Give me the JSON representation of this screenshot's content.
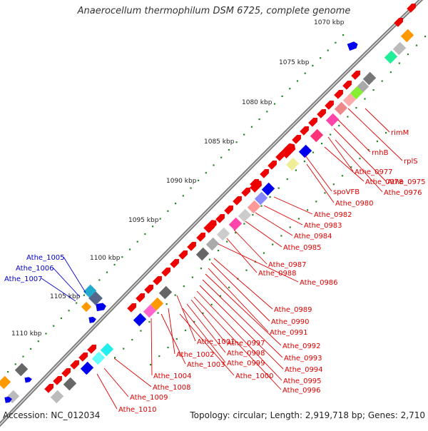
{
  "title": "Anaerocellum thermophilum DSM 6725, complete genome",
  "footer": {
    "accession": "Accession: NC_012034",
    "summary": "Topology: circular; Length: 2,919,718 bp; Genes: 2,710"
  },
  "scale_labels": [
    "1070 kbp",
    "1075 kbp",
    "1080 kbp",
    "1085 kbp",
    "1090 kbp",
    "1095 kbp",
    "1100 kbp",
    "1105 kbp",
    "1110 kbp"
  ],
  "labels_right": [
    "rimM",
    "rplS",
    "rnhB",
    "Athe_0975",
    "Athe_0976",
    "Athe_0977",
    "Athe_0978",
    "spoVFB",
    "Athe_0980",
    "Athe_0982",
    "Athe_0983",
    "Athe_0984",
    "Athe_0985",
    "Athe_0987",
    "Athe_0988",
    "Athe_0986",
    "Athe_0989",
    "Athe_0990",
    "Athe_0991",
    "Athe_0992",
    "Athe_0993",
    "Athe_0994",
    "Athe_0995",
    "Athe_0996",
    "Athe_1001",
    "Athe_0997",
    "Athe_0998",
    "Athe_0999",
    "Athe_1000",
    "Athe_1002",
    "Athe_1003",
    "Athe_1004",
    "Athe_1008",
    "Athe_1009",
    "Athe_1010"
  ],
  "labels_left": [
    "Athe_1005",
    "Athe_1006",
    "Athe_1007"
  ],
  "colors": {
    "label_red": "#dd0000",
    "label_blue": "#0000cc",
    "backbone": "#777777",
    "tick_green": "#228822"
  }
}
